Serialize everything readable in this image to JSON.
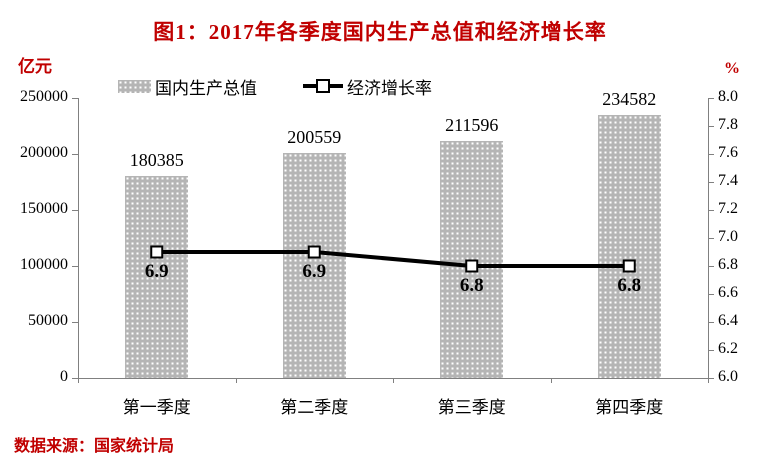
{
  "colors": {
    "accent_red": "#c00000",
    "bar_fill": "#b5b5b5",
    "bar_dot": "#ffffff",
    "line_color": "#000000",
    "axis_color": "#808080",
    "text_color": "#000000"
  },
  "chart_data": {
    "type": "bar",
    "title": "图1：2017年各季度国内生产总值和经济增长率",
    "categories": [
      "第一季度",
      "第二季度",
      "第三季度",
      "第四季度"
    ],
    "series": [
      {
        "name": "国内生产总值",
        "kind": "bar",
        "axis": "left",
        "values": [
          180385,
          200559,
          211596,
          234582
        ],
        "data_labels": [
          "180385",
          "200559",
          "211596",
          "234582"
        ]
      },
      {
        "name": "经济增长率",
        "kind": "line",
        "axis": "right",
        "values": [
          6.9,
          6.9,
          6.8,
          6.8
        ],
        "data_labels": [
          "6.9",
          "6.9",
          "6.8",
          "6.8"
        ]
      }
    ],
    "left_axis": {
      "label": "亿元",
      "min": 0,
      "max": 250000,
      "step": 50000,
      "tick_labels": [
        "0",
        "50000",
        "100000",
        "150000",
        "200000",
        "250000"
      ]
    },
    "right_axis": {
      "label": "%",
      "min": 6.0,
      "max": 8.0,
      "step": 0.2,
      "tick_labels": [
        "6.0",
        "6.2",
        "6.4",
        "6.6",
        "6.8",
        "7.0",
        "7.2",
        "7.4",
        "7.6",
        "7.8",
        "8.0"
      ]
    },
    "grid": false,
    "legend_position": "top",
    "source_note": "数据来源：国家统计局"
  }
}
